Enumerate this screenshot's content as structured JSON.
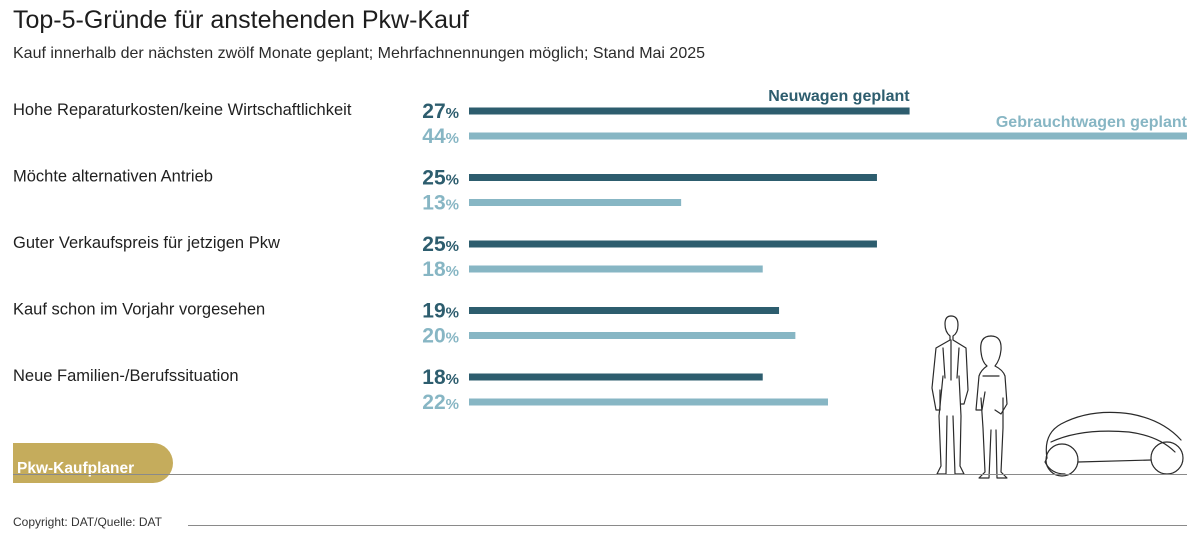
{
  "title": "Top-5-Gründe für anstehenden Pkw-Kauf",
  "subtitle": "Kauf innerhalb der nächsten zwölf Monate geplant; Mehrfachnennungen möglich; Stand Mai 2025",
  "badge": "Pkw-Kaufplaner",
  "copyright": "Copyright: DAT/Quelle: DAT",
  "colors": {
    "neuwagen": "#2d5d6e",
    "gebrauchtwagen": "#87b6c4",
    "badge": "#c5ac5c"
  },
  "illustration": {
    "icons": [
      "standing-man-icon",
      "standing-woman-icon",
      "car-outline-icon"
    ]
  },
  "chart_data": {
    "type": "bar",
    "orientation": "horizontal",
    "unit": "%",
    "xlim": [
      0,
      44
    ],
    "categories": [
      "Hohe Reparaturkosten/keine Wirtschaftlichkeit",
      "Möchte alternativen Antrieb",
      "Guter Verkaufspreis für jetzigen Pkw",
      "Kauf schon im Vorjahr vorgesehen",
      "Neue Familien-/Berufssituation"
    ],
    "series": [
      {
        "name": "Neuwagen geplant",
        "values": [
          27,
          25,
          25,
          19,
          18
        ]
      },
      {
        "name": "Gebrauchtwagen geplant",
        "values": [
          44,
          13,
          18,
          20,
          22
        ]
      }
    ],
    "legend": "inline labels above the first bar pair"
  }
}
